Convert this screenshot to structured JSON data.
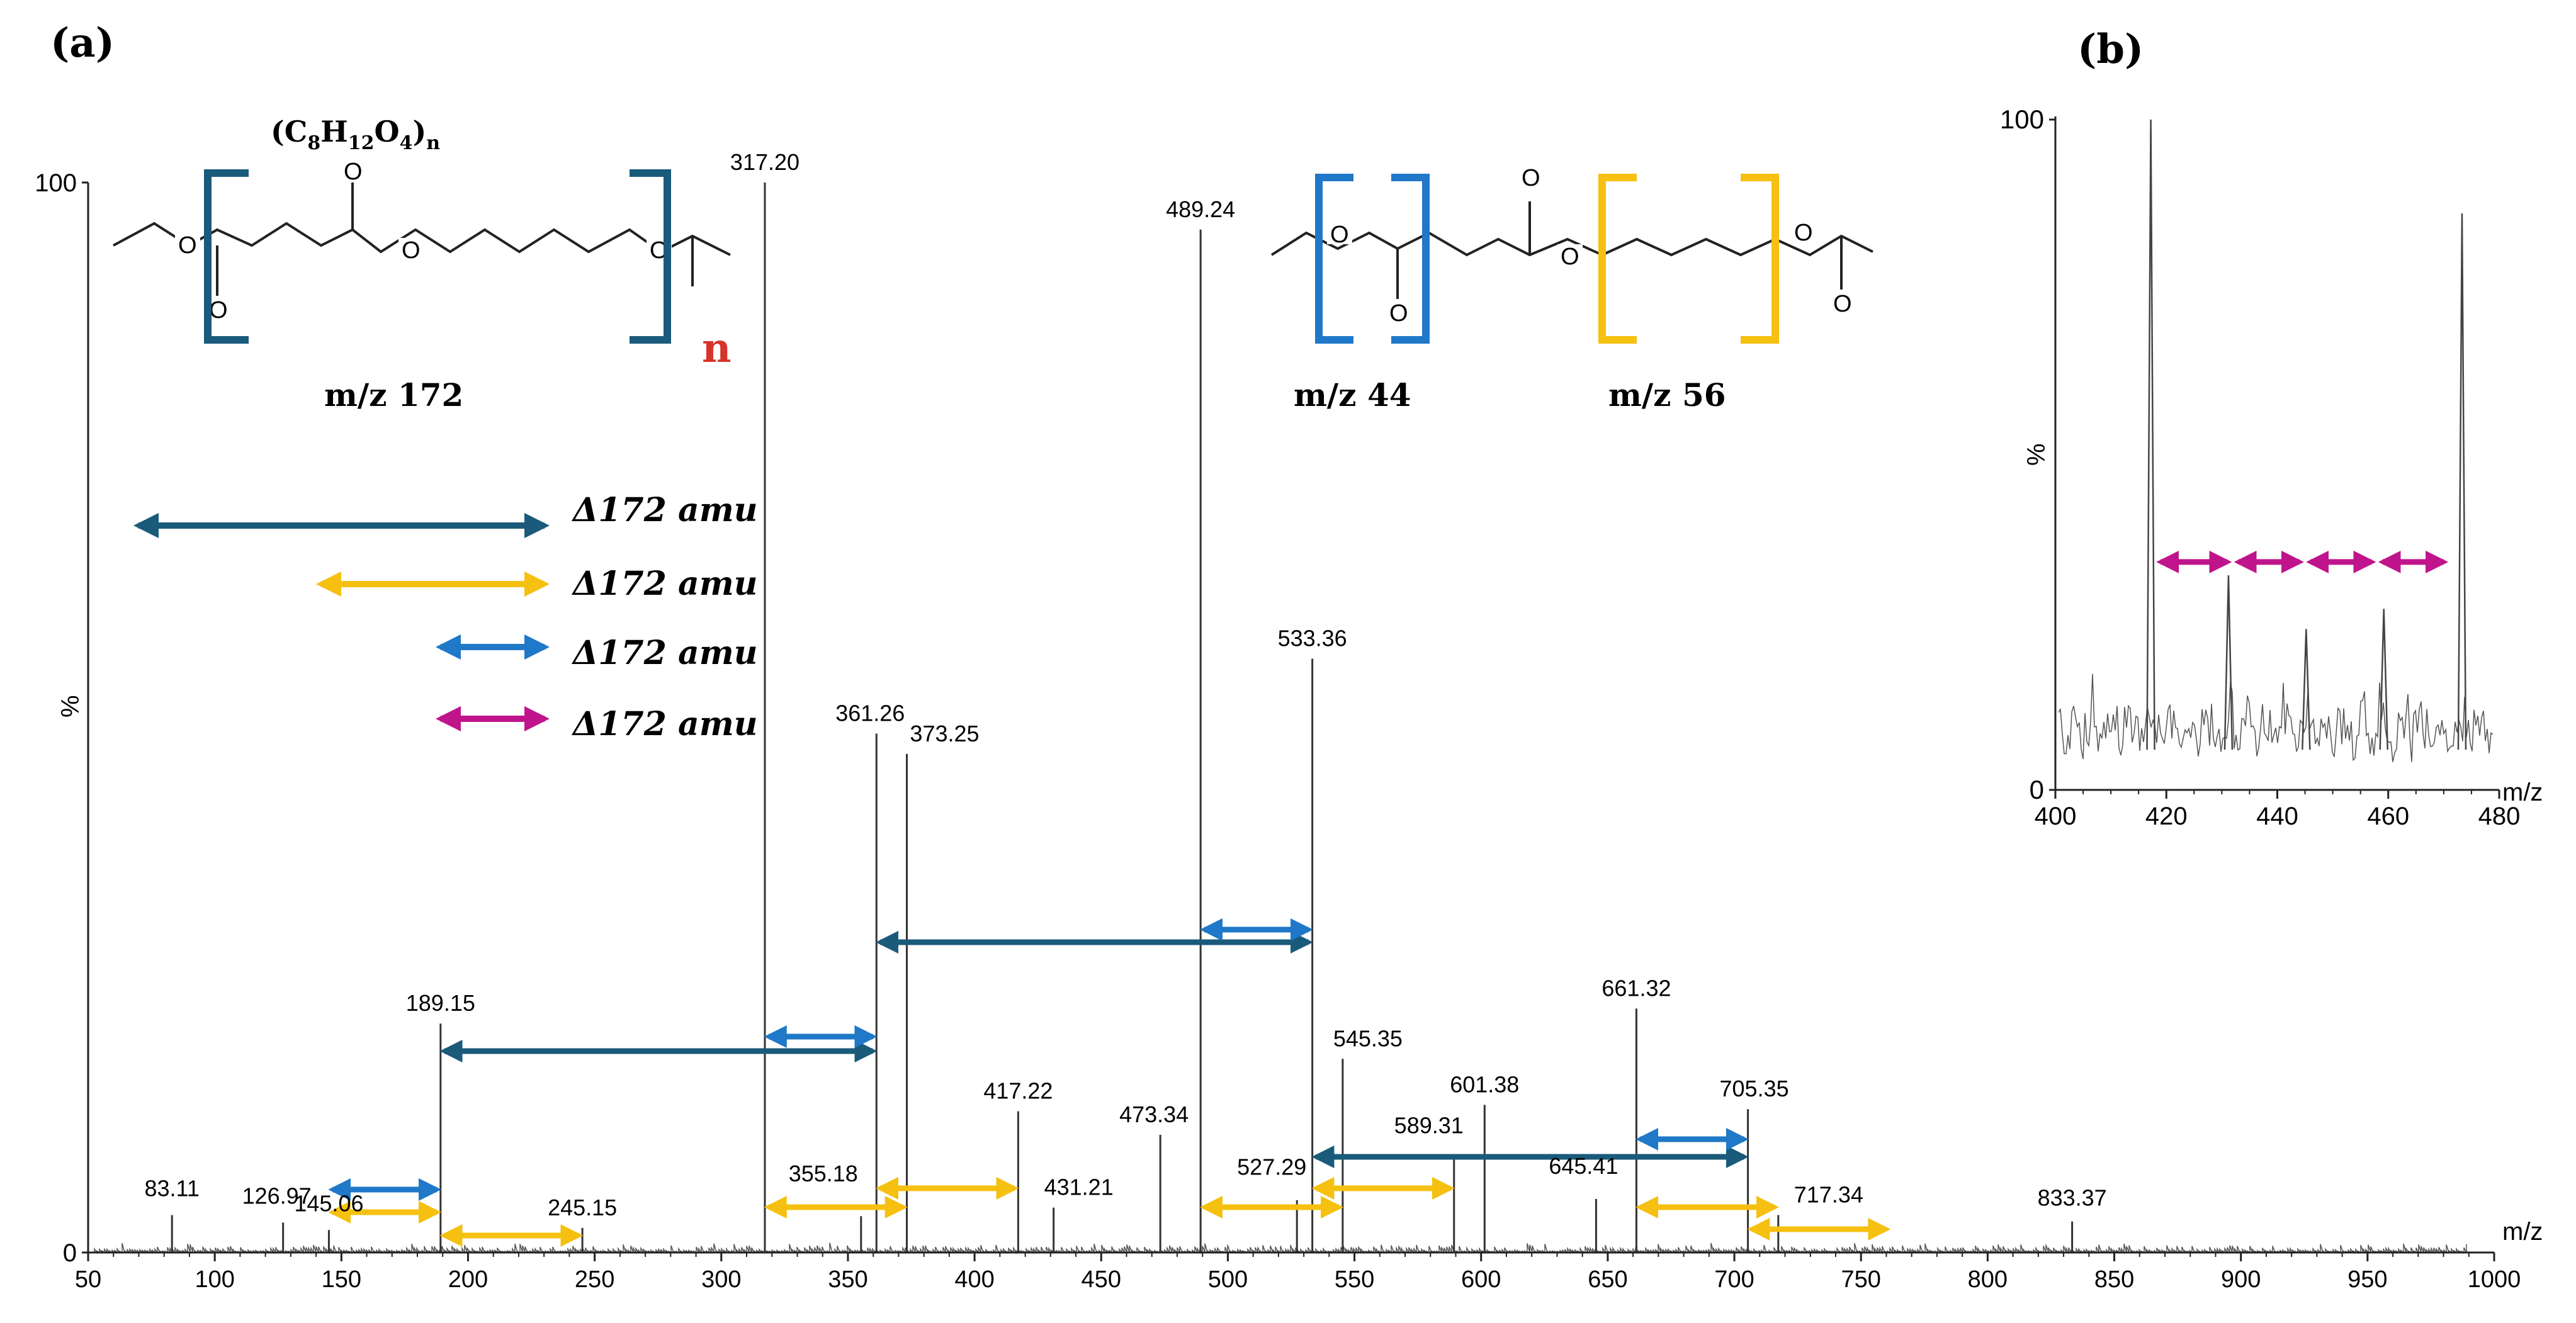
{
  "panel_a": {
    "letter": "(a)",
    "struct_left": {
      "formula_main": "(C",
      "formula_sub1": "8",
      "formula_mid1": "H",
      "formula_sub2": "12",
      "formula_mid2": "O",
      "formula_sub3": "4",
      "formula_end": ")",
      "formula_subn": "n",
      "n_label": "n",
      "mz_label": "m/z 172",
      "o_label": "O"
    },
    "struct_right": {
      "mz44_label": "m/z 44",
      "mz56_label": "m/z 56",
      "o_label": "O"
    },
    "legend": [
      {
        "label": "Δ172 amu",
        "color": "#1a5a7a"
      },
      {
        "label": "Δ172 amu",
        "color": "#f5c010"
      },
      {
        "label": "Δ172 amu",
        "color": "#1f78c8"
      },
      {
        "label": "Δ172 amu",
        "color": "#c0148c"
      }
    ]
  },
  "panel_b": {
    "letter": "(b)"
  },
  "colors": {
    "dark_blue": "#1a5a7a",
    "yellow": "#f5c010",
    "blue": "#1f78c8",
    "magenta": "#c0148c",
    "red": "#d6332b"
  },
  "chart_data": [
    {
      "type": "line",
      "title": "",
      "xlabel": "m/z",
      "ylabel": "%",
      "xlim": [
        50,
        1000
      ],
      "ylim": [
        0,
        100
      ],
      "x_ticks": [
        50,
        100,
        150,
        200,
        250,
        300,
        350,
        400,
        450,
        500,
        550,
        600,
        650,
        700,
        750,
        800,
        850,
        900,
        950,
        1000
      ],
      "y_ticks": [
        0,
        100
      ],
      "labeled_peaks": [
        {
          "x": 83.11,
          "y": 3.5,
          "label": "83.11"
        },
        {
          "x": 126.97,
          "y": 2.8,
          "label": "126.97"
        },
        {
          "x": 145.06,
          "y": 2.1,
          "label": "145.06"
        },
        {
          "x": 189.15,
          "y": 21.4,
          "label": "189.15"
        },
        {
          "x": 245.15,
          "y": 2.3,
          "label": "245.15"
        },
        {
          "x": 317.2,
          "y": 100,
          "label": "317.20"
        },
        {
          "x": 355.18,
          "y": 3.4,
          "label": "355.18"
        },
        {
          "x": 361.26,
          "y": 48.5,
          "label": "361.26"
        },
        {
          "x": 373.25,
          "y": 46.6,
          "label": "373.25"
        },
        {
          "x": 417.22,
          "y": 13.2,
          "label": "417.22"
        },
        {
          "x": 431.21,
          "y": 4.2,
          "label": "431.21"
        },
        {
          "x": 473.34,
          "y": 11.0,
          "label": "473.34"
        },
        {
          "x": 489.24,
          "y": 95.6,
          "label": "489.24"
        },
        {
          "x": 527.29,
          "y": 4.9,
          "label": "527.29"
        },
        {
          "x": 533.36,
          "y": 55.5,
          "label": "533.36"
        },
        {
          "x": 545.35,
          "y": 18.1,
          "label": "545.35"
        },
        {
          "x": 589.31,
          "y": 8.8,
          "label": "589.31"
        },
        {
          "x": 601.38,
          "y": 13.8,
          "label": "601.38"
        },
        {
          "x": 645.41,
          "y": 5.0,
          "label": "645.41"
        },
        {
          "x": 661.32,
          "y": 22.8,
          "label": "661.32"
        },
        {
          "x": 705.35,
          "y": 13.4,
          "label": "705.35"
        },
        {
          "x": 717.34,
          "y": 3.5,
          "label": "717.34"
        },
        {
          "x": 833.37,
          "y": 2.9,
          "label": "833.37"
        }
      ],
      "annotations": [
        {
          "type": "arrow",
          "color": "dark_blue",
          "from": 189.15,
          "to": 361.26
        },
        {
          "type": "arrow",
          "color": "dark_blue",
          "from": 361.26,
          "to": 533.36
        },
        {
          "type": "arrow",
          "color": "dark_blue",
          "from": 533.36,
          "to": 705.35
        },
        {
          "type": "arrow",
          "color": "blue",
          "from": 145.06,
          "to": 189.15
        },
        {
          "type": "arrow",
          "color": "blue",
          "from": 317.2,
          "to": 361.26
        },
        {
          "type": "arrow",
          "color": "blue",
          "from": 489.24,
          "to": 533.36
        },
        {
          "type": "arrow",
          "color": "blue",
          "from": 661.32,
          "to": 705.35
        },
        {
          "type": "arrow",
          "color": "yellow",
          "from": 145.06,
          "to": 189.15
        },
        {
          "type": "arrow",
          "color": "yellow",
          "from": 189.15,
          "to": 245.15
        },
        {
          "type": "arrow",
          "color": "yellow",
          "from": 317.2,
          "to": 373.25
        },
        {
          "type": "arrow",
          "color": "yellow",
          "from": 361.26,
          "to": 417.22
        },
        {
          "type": "arrow",
          "color": "yellow",
          "from": 489.24,
          "to": 545.35
        },
        {
          "type": "arrow",
          "color": "yellow",
          "from": 533.36,
          "to": 589.31
        },
        {
          "type": "arrow",
          "color": "yellow",
          "from": 661.32,
          "to": 717.34
        },
        {
          "type": "arrow",
          "color": "yellow",
          "from": 705.35,
          "to": 761.4
        }
      ]
    },
    {
      "type": "line",
      "title": "",
      "xlabel": "m/z",
      "ylabel": "%",
      "xlim": [
        400,
        480
      ],
      "ylim": [
        0,
        100
      ],
      "x_ticks": [
        400,
        420,
        440,
        460,
        480
      ],
      "y_ticks": [
        0,
        100
      ],
      "peaks": [
        {
          "x": 417.2,
          "y": 100
        },
        {
          "x": 473.3,
          "y": 86
        },
        {
          "x": 431.2,
          "y": 32
        },
        {
          "x": 445.2,
          "y": 24
        },
        {
          "x": 459.2,
          "y": 27
        }
      ],
      "annotations": [
        {
          "type": "arrow",
          "color": "magenta",
          "from": 419,
          "to": 431
        },
        {
          "type": "arrow",
          "color": "magenta",
          "from": 433,
          "to": 444
        },
        {
          "type": "arrow",
          "color": "magenta",
          "from": 446,
          "to": 457
        },
        {
          "type": "arrow",
          "color": "magenta",
          "from": 459,
          "to": 470
        }
      ]
    }
  ]
}
